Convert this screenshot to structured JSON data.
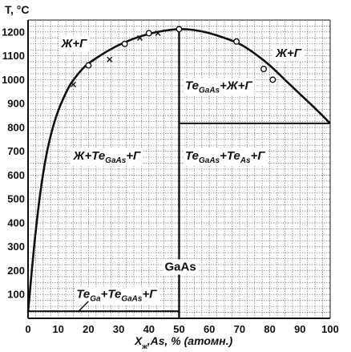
{
  "chart_data": {
    "type": "phase-diagram",
    "xlabel": {
      "main": "X",
      "sub": "ж",
      "rest": ",As, % (атомн.)"
    },
    "ylabel": "T, °C",
    "xlim": [
      0,
      100
    ],
    "ylim": [
      0,
      1250
    ],
    "x_ticks": [
      0,
      10,
      20,
      30,
      40,
      50,
      60,
      70,
      80,
      90,
      100
    ],
    "y_ticks": [
      100,
      200,
      300,
      400,
      500,
      600,
      700,
      800,
      900,
      1000,
      1100,
      1200
    ],
    "grid": true,
    "liquidus_curve": [
      [
        0,
        25
      ],
      [
        2,
        300
      ],
      [
        4,
        520
      ],
      [
        6,
        680
      ],
      [
        8,
        790
      ],
      [
        10,
        870
      ],
      [
        12,
        930
      ],
      [
        14,
        980
      ],
      [
        16,
        1015
      ],
      [
        18,
        1045
      ],
      [
        20,
        1068
      ],
      [
        25,
        1110
      ],
      [
        30,
        1145
      ],
      [
        35,
        1172
      ],
      [
        40,
        1192
      ],
      [
        45,
        1205
      ],
      [
        50,
        1212
      ],
      [
        55,
        1208
      ],
      [
        60,
        1195
      ],
      [
        65,
        1175
      ],
      [
        70,
        1150
      ],
      [
        75,
        1110
      ],
      [
        80,
        1060
      ],
      [
        85,
        1000
      ],
      [
        90,
        940
      ],
      [
        95,
        880
      ],
      [
        100,
        817
      ]
    ],
    "compound_line": {
      "x": 50,
      "y_range": [
        0,
        1212
      ],
      "label": "GaAs",
      "label_y": 200
    },
    "eutectic_lines": [
      {
        "name": "ga-side-eutectic",
        "x_range": [
          0,
          50
        ],
        "y": 30
      },
      {
        "name": "as-side-eutectic",
        "x_range": [
          50,
          100
        ],
        "y": 817
      }
    ],
    "points_circle": [
      [
        20,
        1060
      ],
      [
        32,
        1150
      ],
      [
        40,
        1195
      ],
      [
        50,
        1212
      ],
      [
        69,
        1160
      ],
      [
        78,
        1045
      ],
      [
        81,
        1000
      ]
    ],
    "points_cross": [
      [
        15,
        980
      ],
      [
        27,
        1085
      ],
      [
        37,
        1175
      ],
      [
        43,
        1195
      ]
    ],
    "phase_fields": [
      {
        "name": "field-liquid-gas-left",
        "parts": [
          {
            "t": "Ж+Г"
          }
        ],
        "x": 11,
        "y": 1135
      },
      {
        "name": "field-liquid-gas-right",
        "parts": [
          {
            "t": "Ж+Г"
          }
        ],
        "x": 82,
        "y": 1095
      },
      {
        "name": "field-solid-liquid-gas-right",
        "parts": [
          {
            "t": "Te"
          },
          {
            "t": "GaAs",
            "sub": true
          },
          {
            "t": "+Ж+Г"
          }
        ],
        "x": 52,
        "y": 960
      },
      {
        "name": "field-liquid-solid-gas-left",
        "parts": [
          {
            "t": "Ж+Te"
          },
          {
            "t": "GaAs",
            "sub": true
          },
          {
            "t": "+Г"
          }
        ],
        "x": 15,
        "y": 665
      },
      {
        "name": "field-two-solids-gas-right",
        "parts": [
          {
            "t": "Te"
          },
          {
            "t": "GaAs",
            "sub": true
          },
          {
            "t": "+Te"
          },
          {
            "t": "As",
            "sub": true
          },
          {
            "t": "+Г"
          }
        ],
        "x": 52,
        "y": 665
      },
      {
        "name": "field-two-solids-gas-left",
        "parts": [
          {
            "t": "Te"
          },
          {
            "t": "Ga",
            "sub": true
          },
          {
            "t": "+Te"
          },
          {
            "t": "GaAs",
            "sub": true
          },
          {
            "t": "+Г"
          }
        ],
        "x": 16,
        "y": 85
      }
    ]
  }
}
